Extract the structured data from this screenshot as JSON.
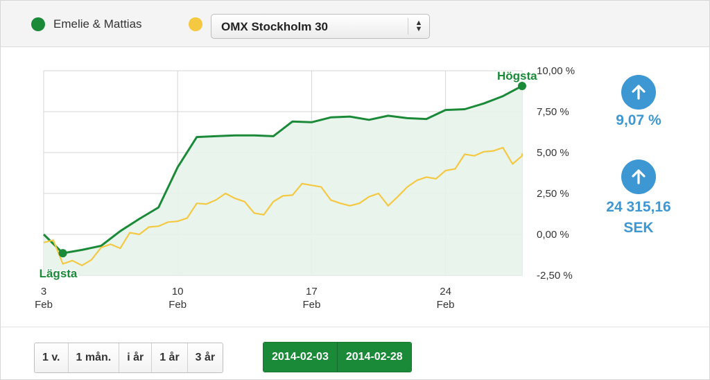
{
  "legend": {
    "primary_label": "Emelie & Mattias",
    "primary_color": "#1a8a38",
    "secondary_color": "#f5c842",
    "compare_selected": "OMX Stockholm 30"
  },
  "kpi": {
    "return_pct": "9,07 %",
    "return_sek_line1": "24 315,16",
    "return_sek_line2": "SEK",
    "icon": "arrow-up-icon"
  },
  "range_buttons": [
    "1 v.",
    "1 mån.",
    "i år",
    "1 år",
    "3 år"
  ],
  "date_range": {
    "from": "2014-02-03",
    "to": "2014-02-28"
  },
  "chart_data": {
    "type": "line",
    "x_start": "2014-02-03",
    "x_end": "2014-02-28",
    "x_ticks": [
      {
        "date": "2014-02-03",
        "line1": "3",
        "line2": "Feb"
      },
      {
        "date": "2014-02-10",
        "line1": "10",
        "line2": "Feb"
      },
      {
        "date": "2014-02-17",
        "line1": "17",
        "line2": "Feb"
      },
      {
        "date": "2014-02-24",
        "line1": "24",
        "line2": "Feb"
      }
    ],
    "y_ticks": [
      {
        "value": 10,
        "label": "10,00 %"
      },
      {
        "value": 7.5,
        "label": "7,50 %"
      },
      {
        "value": 5,
        "label": "5,00 %"
      },
      {
        "value": 2.5,
        "label": "2,50 %"
      },
      {
        "value": 0,
        "label": "0,00 %"
      },
      {
        "value": -2.5,
        "label": "-2,50 %"
      }
    ],
    "ylim": [
      -2.5,
      10
    ],
    "grid": true,
    "low_label": "Lägsta",
    "high_label": "Högsta",
    "series": [
      {
        "name": "Emelie & Mattias",
        "color": "#1a8a38",
        "fill": true,
        "points": [
          [
            "2014-02-03",
            0.0
          ],
          [
            "2014-02-04",
            -1.15
          ],
          [
            "2014-02-05",
            -0.95
          ],
          [
            "2014-02-06",
            -0.7
          ],
          [
            "2014-02-07",
            0.2
          ],
          [
            "2014-02-08",
            0.95
          ],
          [
            "2014-02-09",
            1.65
          ],
          [
            "2014-02-10",
            4.1
          ],
          [
            "2014-02-11",
            5.95
          ],
          [
            "2014-02-12",
            6.0
          ],
          [
            "2014-02-13",
            6.05
          ],
          [
            "2014-02-14",
            6.05
          ],
          [
            "2014-02-15",
            6.0
          ],
          [
            "2014-02-16",
            6.9
          ],
          [
            "2014-02-17",
            6.85
          ],
          [
            "2014-02-18",
            7.15
          ],
          [
            "2014-02-19",
            7.2
          ],
          [
            "2014-02-20",
            7.0
          ],
          [
            "2014-02-21",
            7.25
          ],
          [
            "2014-02-22",
            7.1
          ],
          [
            "2014-02-23",
            7.05
          ],
          [
            "2014-02-24",
            7.6
          ],
          [
            "2014-02-25",
            7.65
          ],
          [
            "2014-02-26",
            8.0
          ],
          [
            "2014-02-27",
            8.45
          ],
          [
            "2014-02-28",
            9.07
          ]
        ]
      },
      {
        "name": "OMX Stockholm 30",
        "color": "#f5c842",
        "fill": false,
        "points": [
          [
            "2014-02-03",
            -0.5
          ],
          [
            "2014-02-03",
            -0.35
          ],
          [
            "2014-02-04",
            -1.8
          ],
          [
            "2014-02-04",
            -1.6
          ],
          [
            "2014-02-05",
            -1.9
          ],
          [
            "2014-02-05",
            -1.55
          ],
          [
            "2014-02-06",
            -0.8
          ],
          [
            "2014-02-06",
            -0.6
          ],
          [
            "2014-02-07",
            -0.85
          ],
          [
            "2014-02-07",
            0.1
          ],
          [
            "2014-02-08",
            0.0
          ],
          [
            "2014-02-08",
            0.45
          ],
          [
            "2014-02-09",
            0.5
          ],
          [
            "2014-02-09",
            0.75
          ],
          [
            "2014-02-10",
            0.8
          ],
          [
            "2014-02-10",
            1.0
          ],
          [
            "2014-02-11",
            1.9
          ],
          [
            "2014-02-11",
            1.85
          ],
          [
            "2014-02-12",
            2.1
          ],
          [
            "2014-02-12",
            2.5
          ],
          [
            "2014-02-13",
            2.2
          ],
          [
            "2014-02-13",
            2.0
          ],
          [
            "2014-02-14",
            1.3
          ],
          [
            "2014-02-14",
            1.2
          ],
          [
            "2014-02-15",
            2.0
          ],
          [
            "2014-02-15",
            2.35
          ],
          [
            "2014-02-16",
            2.4
          ],
          [
            "2014-02-16",
            3.1
          ],
          [
            "2014-02-17",
            3.0
          ],
          [
            "2014-02-17",
            2.9
          ],
          [
            "2014-02-18",
            2.1
          ],
          [
            "2014-02-18",
            1.9
          ],
          [
            "2014-02-19",
            1.75
          ],
          [
            "2014-02-19",
            1.9
          ],
          [
            "2014-02-20",
            2.3
          ],
          [
            "2014-02-20",
            2.5
          ],
          [
            "2014-02-21",
            1.75
          ],
          [
            "2014-02-21",
            2.3
          ],
          [
            "2014-02-22",
            2.9
          ],
          [
            "2014-02-22",
            3.3
          ],
          [
            "2014-02-23",
            3.5
          ],
          [
            "2014-02-23",
            3.4
          ],
          [
            "2014-02-24",
            3.9
          ],
          [
            "2014-02-24",
            4.0
          ],
          [
            "2014-02-25",
            4.9
          ],
          [
            "2014-02-25",
            4.8
          ],
          [
            "2014-02-26",
            5.05
          ],
          [
            "2014-02-26",
            5.1
          ],
          [
            "2014-02-27",
            5.3
          ],
          [
            "2014-02-27",
            4.3
          ],
          [
            "2014-02-28",
            4.8
          ],
          [
            "2014-02-28",
            4.95
          ]
        ]
      }
    ]
  }
}
